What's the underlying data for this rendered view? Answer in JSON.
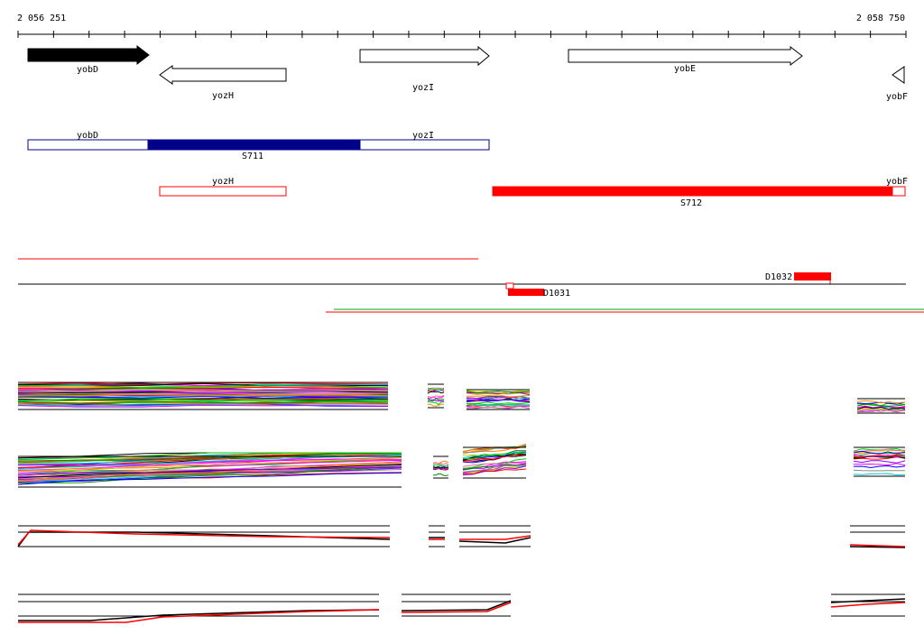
{
  "ruler": {
    "start_label": "2 056 251",
    "end_label": "2 058 750"
  },
  "genes": [
    {
      "name": "yobD",
      "strand": "+",
      "fill": "#000000"
    },
    {
      "name": "yozH",
      "strand": "-",
      "fill": "#ffffff"
    },
    {
      "name": "yozI",
      "strand": "+",
      "fill": "#ffffff"
    },
    {
      "name": "yobE",
      "strand": "+",
      "fill": "#ffffff"
    },
    {
      "name": "yobF",
      "strand": "-",
      "fill": "#ffffff"
    }
  ],
  "segments_row1": {
    "outline_color": "#00008b",
    "fill_color": "#00008b",
    "labels": {
      "left": "yobD",
      "right": "yozI",
      "middle": "S711"
    }
  },
  "segments_row2": {
    "outline_color": "#ff0000",
    "fill_color": "#ff0000",
    "labels": {
      "left": "yozH",
      "right": "yobF",
      "middle": "S712"
    }
  },
  "tracks": {
    "D1031": "D1031",
    "D1032": "D1032",
    "red_line_color": "#ff0000",
    "green_line_color": "#00aa00"
  },
  "colors": {
    "axis": "#000000",
    "expression_palette": [
      "#ff0000",
      "#00cc00",
      "#0000ff",
      "#ff00ff",
      "#00cccc",
      "#cccc00",
      "#ff8800",
      "#8800ff",
      "#008800",
      "#888888",
      "#000000",
      "#ff66aa"
    ]
  }
}
